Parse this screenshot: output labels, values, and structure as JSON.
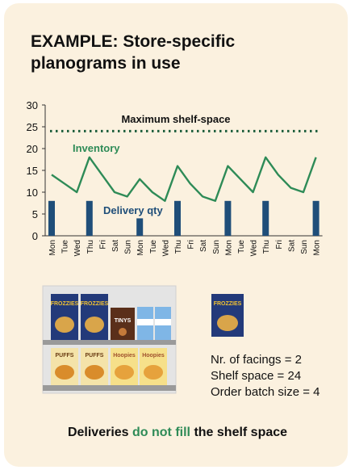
{
  "title": "EXAMPLE: Store-specific planograms in use",
  "colors": {
    "background": "#fbf1df",
    "inventory": "#2e8b57",
    "delivery": "#1f4e79",
    "shelf_line": "#1a5c3a"
  },
  "chart_data": {
    "type": "line",
    "y_ticks": [
      "0",
      "5",
      "10",
      "15",
      "20",
      "25",
      "30"
    ],
    "ylim": [
      0,
      30
    ],
    "categories": [
      "Mon",
      "Tue",
      "Wed",
      "Thu",
      "Fri",
      "Sat",
      "Sun",
      "Mon",
      "Tue",
      "Wed",
      "Thu",
      "Fri",
      "Sat",
      "Sun",
      "Mon",
      "Tue",
      "Wed",
      "Thu",
      "Fri",
      "Sat",
      "Sun",
      "Mon"
    ],
    "series": [
      {
        "name": "Inventory",
        "kind": "line",
        "values": [
          14,
          12,
          10,
          18,
          14,
          10,
          9,
          13,
          10,
          8,
          16,
          12,
          9,
          8,
          16,
          13,
          10,
          18,
          14,
          11,
          10,
          18
        ]
      },
      {
        "name": "Delivery qty",
        "kind": "bar",
        "values": [
          8,
          0,
          0,
          8,
          0,
          0,
          0,
          4,
          0,
          0,
          8,
          0,
          0,
          0,
          8,
          0,
          0,
          8,
          0,
          0,
          0,
          8
        ]
      }
    ],
    "reference_line": {
      "label": "Maximum shelf-space",
      "value": 24
    }
  },
  "specs": [
    "Nr. of facings = 2",
    "Shelf space = 24",
    "Order batch size = 4"
  ],
  "products": {
    "brand_frozen": "FROZZIES",
    "brand_tiny": "TINYS",
    "brand_puffs": "PUFFS",
    "brand_hoopies": "Hoopies"
  },
  "footer": {
    "pre": "Deliveries ",
    "highlight": "do not fill",
    "post": " the shelf space"
  }
}
